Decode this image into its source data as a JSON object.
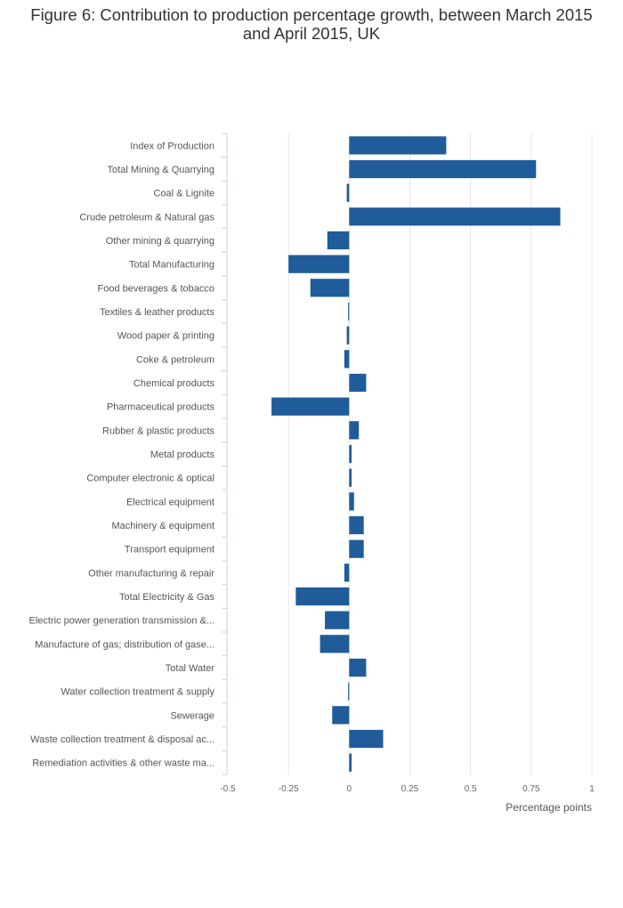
{
  "title": "Figure 6: Contribution to production percentage growth, between March 2015 and April 2015, UK",
  "colors": {
    "bar": "#1f5c99",
    "grid": "#e6e6e6",
    "axis": "#c9d3de"
  },
  "chart_data": {
    "type": "bar",
    "orientation": "horizontal",
    "title": "Figure 6: Contribution to production percentage growth, between March 2015 and April 2015, UK",
    "xlabel": "Percentage points",
    "ylabel": "",
    "xlim": [
      -0.5,
      1
    ],
    "xticks": [
      -0.5,
      -0.25,
      0,
      0.25,
      0.5,
      0.75,
      1
    ],
    "xtick_labels": [
      "-0.5",
      "-0.25",
      "0",
      "0.25",
      "0.5",
      "0.75",
      "1"
    ],
    "grid": true,
    "categories": [
      "Index of Production",
      "Total Mining & Quarrying",
      "Coal & Lignite",
      "Crude petroleum & Natural gas",
      "Other mining & quarrying",
      "Total Manufacturing",
      "Food beverages & tobacco",
      "Textiles & leather products",
      "Wood paper & printing",
      "Coke & petroleum",
      "Chemical products",
      "Pharmaceutical products",
      "Rubber & plastic products",
      "Metal products",
      "Computer electronic & optical",
      "Electrical equipment",
      "Machinery & equipment",
      "Transport equipment",
      "Other manufacturing & repair",
      "Total Electricity & Gas",
      "Electric power generation transmission &...",
      "Manufacture of gas; distribution of gase...",
      "Total Water",
      "Water collection treatment & supply",
      "Sewerage",
      "Waste collection treatment & disposal ac...",
      "Remediation activities & other waste ma..."
    ],
    "values": [
      0.4,
      0.77,
      -0.01,
      0.87,
      -0.09,
      -0.25,
      -0.16,
      -0.003,
      -0.01,
      -0.02,
      0.07,
      -0.32,
      0.04,
      0.01,
      0.01,
      0.02,
      0.06,
      0.06,
      -0.02,
      -0.22,
      -0.1,
      -0.12,
      0.07,
      -0.003,
      -0.07,
      0.14,
      0.01
    ]
  }
}
